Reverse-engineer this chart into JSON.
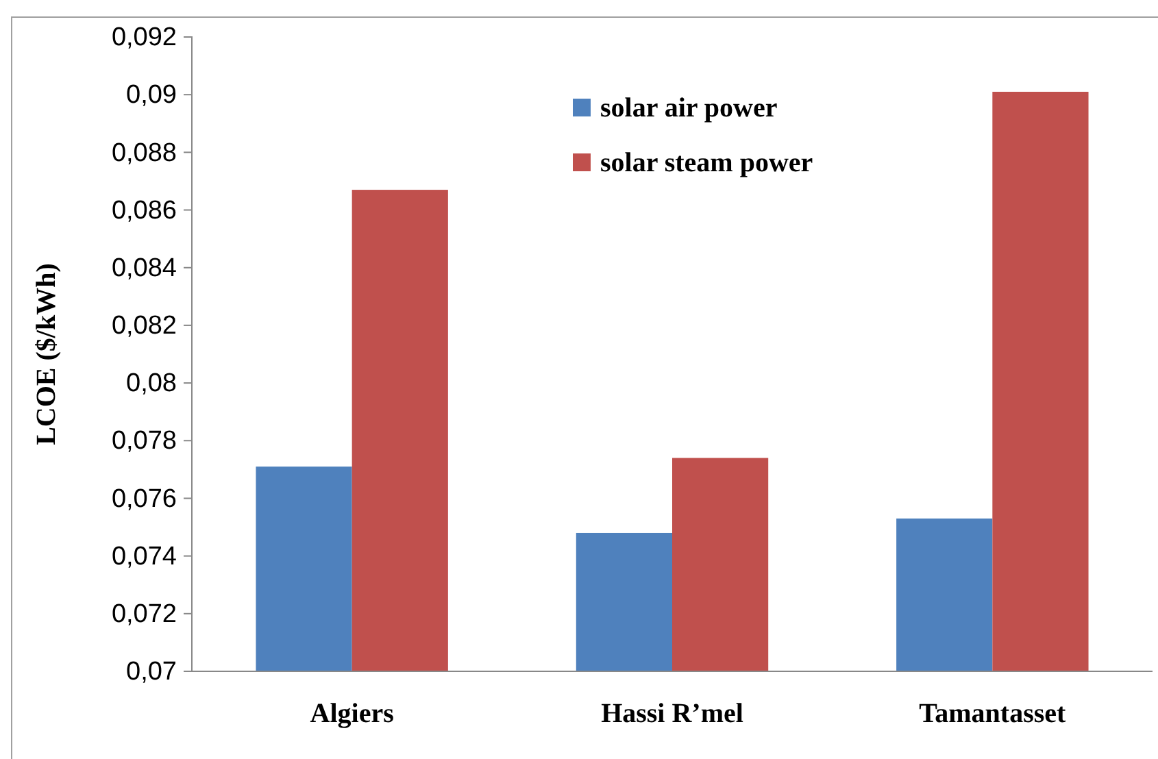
{
  "chart_data": {
    "type": "bar",
    "ylabel": "LCOE  ($/kWh)",
    "categories": [
      "Algiers",
      "Hassi R’mel",
      "Tamantasset"
    ],
    "series": [
      {
        "name": "solar air power",
        "color": "#4f81bd",
        "values": [
          0.0771,
          0.0748,
          0.0753
        ]
      },
      {
        "name": "solar steam power",
        "color": "#c0504d",
        "values": [
          0.0867,
          0.0774,
          0.0901
        ]
      }
    ],
    "ylim": [
      0.07,
      0.092
    ],
    "yticks": [
      {
        "value": 0.07,
        "label": "0,07"
      },
      {
        "value": 0.072,
        "label": "0,072"
      },
      {
        "value": 0.074,
        "label": "0,074"
      },
      {
        "value": 0.076,
        "label": "0,076"
      },
      {
        "value": 0.078,
        "label": "0,078"
      },
      {
        "value": 0.08,
        "label": "0,08"
      },
      {
        "value": 0.082,
        "label": "0,082"
      },
      {
        "value": 0.084,
        "label": "0,084"
      },
      {
        "value": 0.086,
        "label": "0,086"
      },
      {
        "value": 0.088,
        "label": "0,088"
      },
      {
        "value": 0.09,
        "label": "0,09"
      },
      {
        "value": 0.092,
        "label": "0,092"
      }
    ],
    "grid": false,
    "legend": "top right"
  }
}
